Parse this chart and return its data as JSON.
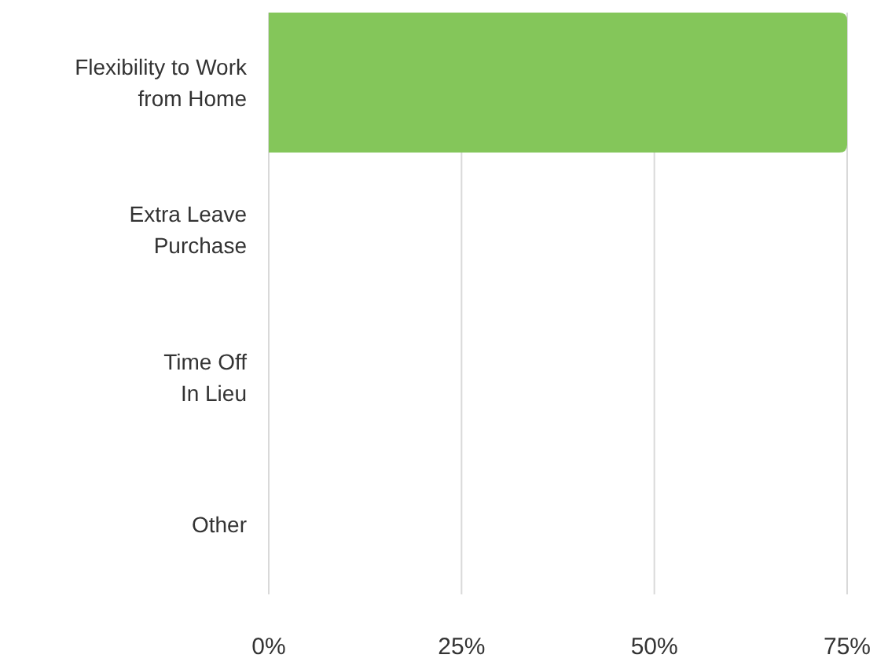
{
  "chart_data": {
    "type": "bar",
    "orientation": "horizontal",
    "categories": [
      "Flexibility to Work\nfrom Home",
      "Extra Leave\nPurchase",
      "Time Off\nIn Lieu",
      "Other"
    ],
    "values": [
      75,
      0,
      0,
      0
    ],
    "color": "#84c65a",
    "xlim": [
      0,
      75
    ],
    "xticks": [
      {
        "value": 0,
        "label": "0%"
      },
      {
        "value": 25,
        "label": "25%"
      },
      {
        "value": 50,
        "label": "50%"
      },
      {
        "value": 75,
        "label": "75%"
      }
    ],
    "grid": "x"
  }
}
